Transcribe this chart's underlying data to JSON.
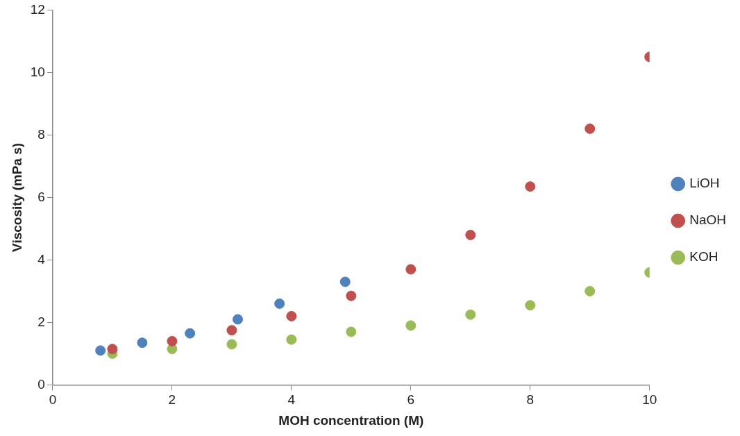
{
  "chart_data": {
    "type": "scatter",
    "xlabel": "MOH concentration (M)",
    "ylabel": "Viscosity (mPa s)",
    "xlim": [
      0,
      10
    ],
    "xticks": [
      0,
      2,
      4,
      6,
      8,
      10
    ],
    "ylim": [
      0,
      12
    ],
    "yticks": [
      0,
      2,
      4,
      6,
      8,
      10,
      12
    ],
    "grid": false,
    "legend": "right",
    "marker": "circle",
    "series": [
      {
        "name": "LiOH",
        "color": "#4f81bd",
        "x": [
          0.8,
          1.5,
          2.3,
          3.1,
          3.8,
          4.9
        ],
        "values": [
          1.1,
          1.35,
          1.65,
          2.1,
          2.6,
          3.3
        ]
      },
      {
        "name": "NaOH",
        "color": "#c0504d",
        "x": [
          1,
          2,
          3,
          4,
          5,
          6,
          7,
          8,
          9,
          10
        ],
        "values": [
          1.15,
          1.4,
          1.75,
          2.2,
          2.85,
          3.7,
          4.8,
          6.35,
          8.2,
          10.5
        ]
      },
      {
        "name": "KOH",
        "color": "#9bbb59",
        "x": [
          1,
          2,
          3,
          4,
          5,
          6,
          7,
          8,
          9,
          10
        ],
        "values": [
          1.0,
          1.15,
          1.3,
          1.45,
          1.7,
          1.9,
          2.25,
          2.55,
          3.0,
          3.6
        ]
      }
    ]
  }
}
